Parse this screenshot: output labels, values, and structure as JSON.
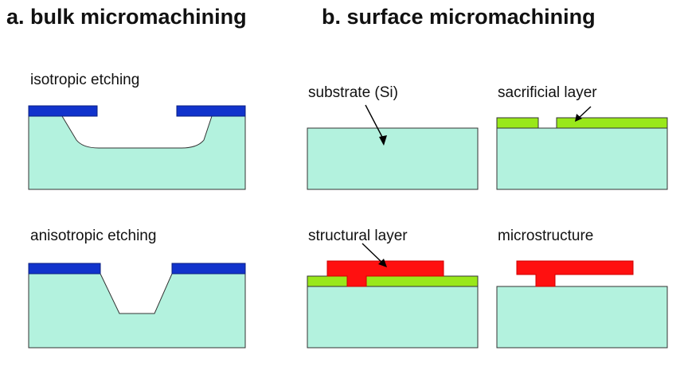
{
  "titles": {
    "bulk": "a.  bulk micromachining",
    "surface": "b.  surface micromachining"
  },
  "labels": {
    "isotropic": "isotropic etching",
    "anisotropic": "anisotropic etching",
    "substrate": "substrate (Si)",
    "sacrificial": "sacrificial layer",
    "structural": "structural layer",
    "microstructure": "microstructure"
  },
  "colors": {
    "substrate": "#b3f2de",
    "mask": "#1133cc",
    "sacrificial": "#99e81a",
    "structural": "#ff1010",
    "outline": "#333333"
  }
}
